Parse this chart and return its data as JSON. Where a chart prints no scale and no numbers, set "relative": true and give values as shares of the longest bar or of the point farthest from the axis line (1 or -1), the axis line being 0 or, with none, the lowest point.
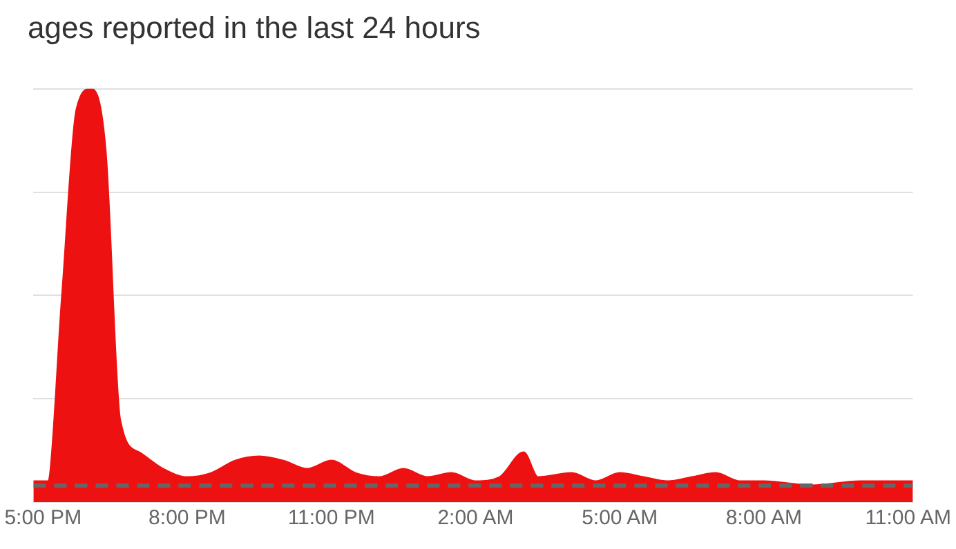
{
  "chart_data": {
    "type": "area",
    "title": "ages reported in the last 24 hours",
    "relative": true,
    "grid": "y",
    "legend": false,
    "xlim": [
      "--01-01T16:48",
      "--01-02T11:06"
    ],
    "xticks": [
      {
        "value": "--01-01T17:00",
        "label": "5:00 PM"
      },
      {
        "value": "--01-01T20:00",
        "label": "8:00 PM"
      },
      {
        "value": "--01-01T23:00",
        "label": "11:00 PM"
      },
      {
        "value": "--01-02T02:00",
        "label": "2:00 AM"
      },
      {
        "value": "--01-02T05:00",
        "label": "5:00 AM"
      },
      {
        "value": "--01-02T08:00",
        "label": "8:00 AM"
      },
      {
        "value": "--01-02T11:00",
        "label": "11:00 AM"
      }
    ],
    "series": [
      {
        "type": "area",
        "color": "#ee1111",
        "x": [
          "--01-01T16:48",
          "--01-01T17:06",
          "--01-01T17:24",
          "--01-01T17:42",
          "--01-01T18:00",
          "--01-01T18:18",
          "--01-01T18:36",
          "--01-01T19:00",
          "--01-01T19:30",
          "--01-01T20:00",
          "--01-01T20:30",
          "--01-01T21:00",
          "--01-01T21:30",
          "--01-01T22:00",
          "--01-01T22:30",
          "--01-01T23:00",
          "--01-01T23:30",
          "--01-02T00:00",
          "--01-02T00:30",
          "--01-02T01:00",
          "--01-02T01:30",
          "--01-02T02:00",
          "--01-02T02:30",
          "--01-02T03:00",
          "--01-02T03:18",
          "--01-02T04:00",
          "--01-02T04:30",
          "--01-02T05:00",
          "--01-02T05:30",
          "--01-02T06:00",
          "--01-02T06:30",
          "--01-02T07:00",
          "--01-02T07:30",
          "--01-02T08:00",
          "--01-02T09:00",
          "--01-02T10:00",
          "--01-02T11:06"
        ],
        "values": [
          0.05,
          0.05,
          0.5,
          0.95,
          1,
          0.85,
          0.2,
          0.12,
          0.08,
          0.06,
          0.07,
          0.1,
          0.11,
          0.1,
          0.08,
          0.1,
          0.07,
          0.06,
          0.08,
          0.06,
          0.07,
          0.05,
          0.06,
          0.12,
          0.06,
          0.07,
          0.05,
          0.07,
          0.06,
          0.05,
          0.06,
          0.07,
          0.05,
          0.05,
          0.04,
          0.05,
          0.05
        ]
      },
      {
        "type": "line",
        "color": "#666666",
        "line_style": "dashed",
        "x": [
          "--01-01T16:48",
          "--01-01T20:00",
          "--01-01T23:00",
          "--01-02T02:00",
          "--01-02T05:00",
          "--01-02T08:00",
          "--01-02T11:06"
        ],
        "values": [
          0.04,
          0.04,
          0.04,
          0.04,
          0.04,
          0.04,
          0.04
        ]
      }
    ]
  }
}
